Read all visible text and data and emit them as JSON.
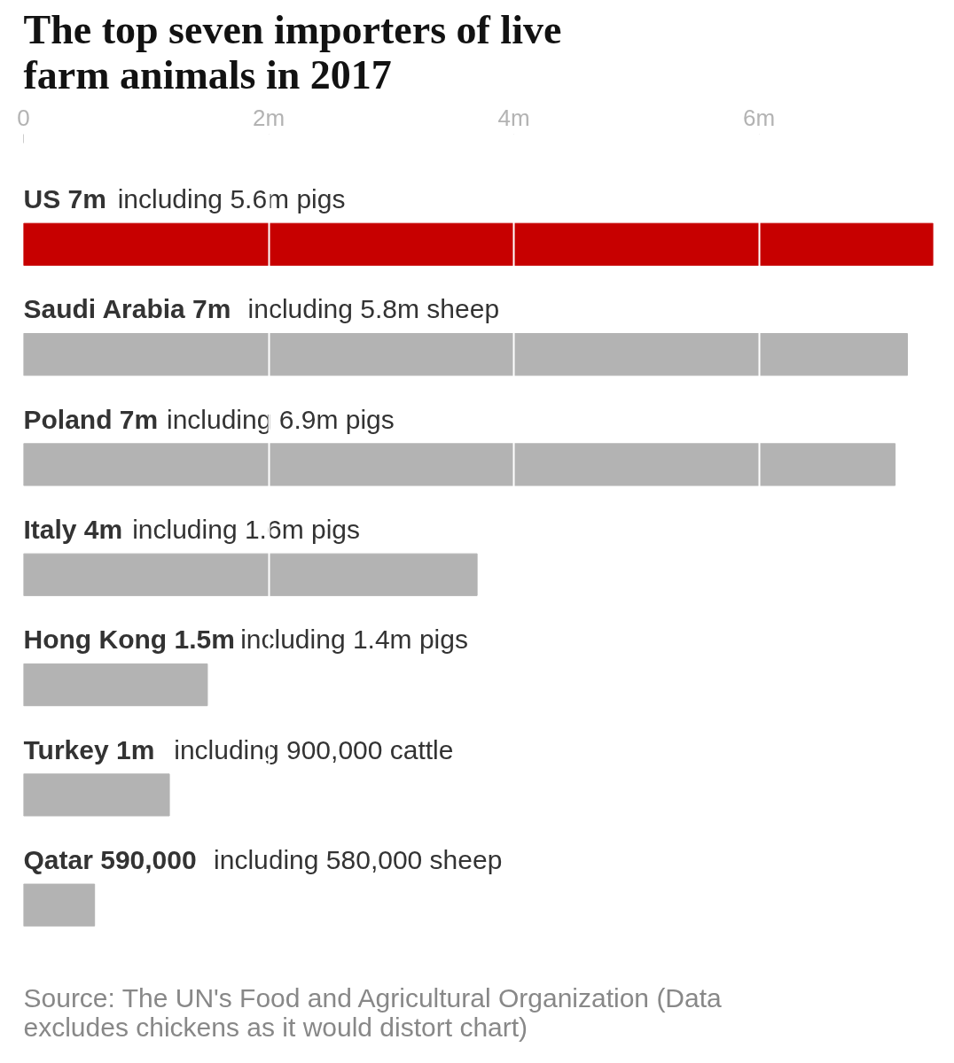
{
  "chart_data": {
    "type": "bar",
    "orientation": "horizontal",
    "title": "The top seven importers of live farm animals in 2017",
    "categories": [
      "US 7m",
      "Saudi Arabia 7m",
      "Poland 7m",
      "Italy 4m",
      "Hong Kong 1.5m",
      "Turkey 1m",
      "Qatar 590,000"
    ],
    "values": [
      7.42,
      7.21,
      7.11,
      3.7,
      1.5,
      1.19,
      0.58
    ],
    "colors": [
      "#c70000",
      "#b3b3b3",
      "#b3b3b3",
      "#b3b3b3",
      "#b3b3b3",
      "#b3b3b3",
      "#b3b3b3"
    ],
    "xlim": [
      0,
      7.42
    ],
    "xticks": [
      {
        "value": 0,
        "label": "0"
      },
      {
        "value": 2,
        "label": "2m"
      },
      {
        "value": 4,
        "label": "4m"
      },
      {
        "value": 6,
        "label": "6m"
      }
    ],
    "grid": "x",
    "annotations": [
      "including 5.6m pigs",
      "including 5.8m sheep",
      "including 6.9m pigs",
      "including 1.6m pigs",
      "including 1.4m pigs",
      "including 900,000 cattle",
      "including 580,000 sheep",
      "Source: The UN's Food and Agricultural Organization (Data excludes chickens as it would distort chart)"
    ]
  }
}
